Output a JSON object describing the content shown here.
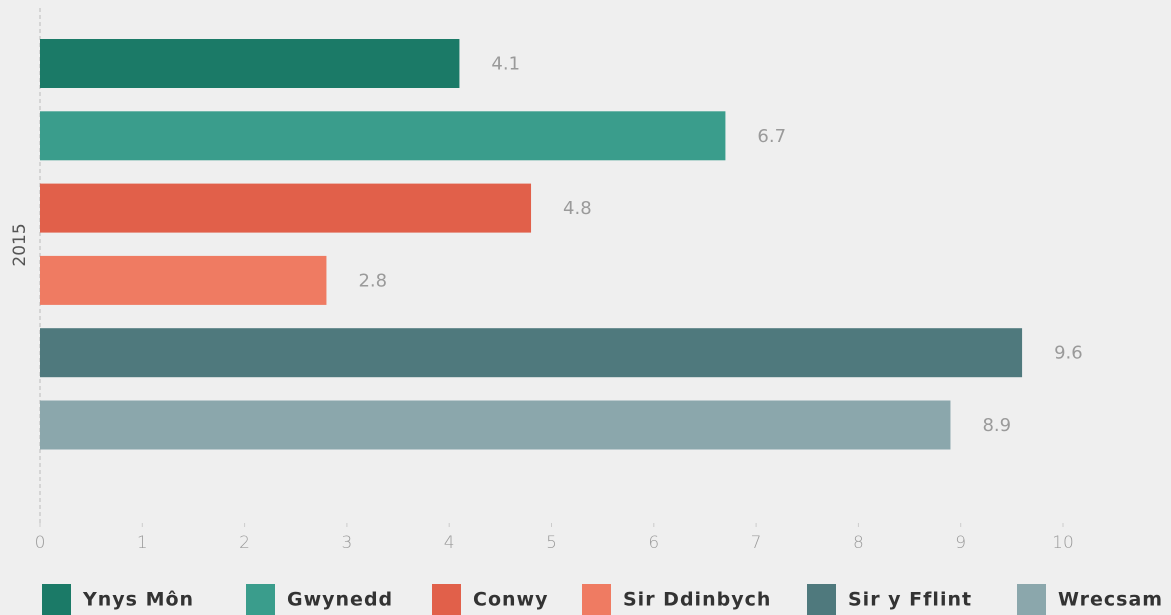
{
  "chart_data": {
    "type": "bar",
    "orientation": "horizontal",
    "categories": [
      "2015"
    ],
    "series": [
      {
        "name": "Ynys Môn",
        "color": "#1b7a67",
        "values": [
          4.1
        ]
      },
      {
        "name": "Gwynedd",
        "color": "#3a9d8c",
        "values": [
          6.7
        ]
      },
      {
        "name": "Conwy",
        "color": "#e1604a",
        "values": [
          4.8
        ]
      },
      {
        "name": "Sir Ddinbych",
        "color": "#ef7b62",
        "values": [
          2.8
        ]
      },
      {
        "name": "Sir y Fflint",
        "color": "#4f797d",
        "values": [
          9.6
        ]
      },
      {
        "name": "Wrecsam",
        "color": "#8ba7ac",
        "values": [
          8.9
        ]
      }
    ],
    "xlim": [
      0,
      10
    ],
    "xticks": [
      0,
      1,
      2,
      3,
      4,
      5,
      6,
      7,
      8,
      9,
      10
    ],
    "legend": "bottom"
  }
}
